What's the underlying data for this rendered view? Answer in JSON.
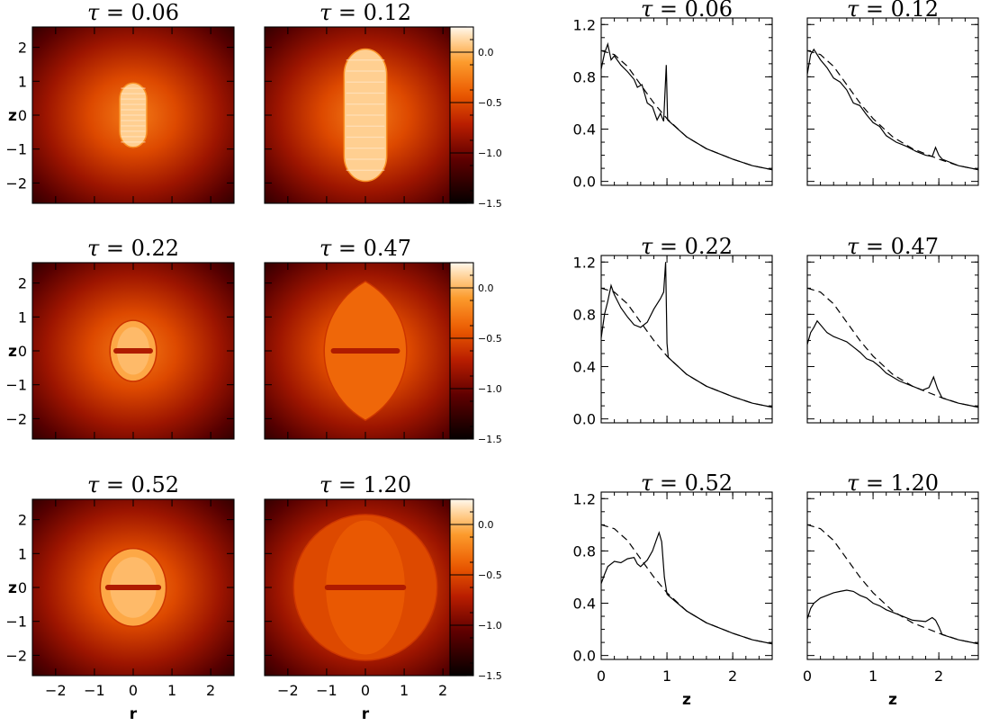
{
  "chart_data": {
    "type": "figure",
    "maps": {
      "type": "heatmap",
      "xlabel": "r",
      "ylabel": "z",
      "x_ticks": [
        -2,
        -1,
        0,
        1,
        2
      ],
      "y_ticks": [
        -2,
        -1,
        0,
        1,
        2
      ],
      "xlim": [
        -2.6,
        2.6
      ],
      "ylim": [
        -2.6,
        2.6
      ],
      "colorbar": {
        "ticks": [
          "0.0",
          "-0.5",
          "-1.0",
          "-1.5"
        ],
        "values": [
          0.0,
          -0.5,
          -1.0,
          -1.5
        ],
        "range": [
          -1.5,
          0.25
        ]
      },
      "panels": [
        {
          "title": "τ = 0.06",
          "tau_label": "τ",
          "value_label": "= 0.06",
          "shock_r": 0.35,
          "shock_z": 0.95,
          "shape": "pill",
          "disk": false
        },
        {
          "title": "τ = 0.12",
          "tau_label": "τ",
          "value_label": "= 0.12",
          "shock_r": 0.55,
          "shock_z": 1.95,
          "shape": "pill",
          "disk": false
        },
        {
          "title": "τ = 0.22",
          "tau_label": "τ",
          "value_label": "= 0.22",
          "shock_r": 0.6,
          "shock_z": 0.9,
          "shape": "ellipse",
          "disk": true
        },
        {
          "title": "τ = 0.47",
          "tau_label": "τ",
          "value_label": "= 0.47",
          "shock_r": 1.05,
          "shock_z": 2.05,
          "shape": "lens",
          "disk": true
        },
        {
          "title": "τ = 0.52",
          "tau_label": "τ",
          "value_label": "= 0.52",
          "shock_r": 0.85,
          "shock_z": 1.15,
          "shape": "ellipse",
          "disk": true
        },
        {
          "title": "τ = 1.20",
          "tau_label": "τ",
          "value_label": "= 1.20",
          "shock_r": 1.85,
          "shock_z": 2.15,
          "shape": "ellipse",
          "disk": true
        }
      ]
    },
    "profiles": {
      "type": "line",
      "xlabel": "z",
      "x_ticks": [
        0,
        1,
        2
      ],
      "y_ticks": [
        "0.0",
        "0.4",
        "0.8",
        "1.2"
      ],
      "y_tick_values": [
        0.0,
        0.4,
        0.8,
        1.2
      ],
      "xlim": [
        0,
        2.6
      ],
      "ylim": [
        -0.03,
        1.25
      ],
      "series": [
        {
          "line": "solid"
        },
        {
          "line": "dashed"
        }
      ],
      "panels": [
        {
          "title": "τ = 0.06",
          "tau_label": "τ",
          "value_label": "= 0.06",
          "solid": [
            [
              0.0,
              0.86
            ],
            [
              0.05,
              0.98
            ],
            [
              0.1,
              1.05
            ],
            [
              0.15,
              0.93
            ],
            [
              0.2,
              0.96
            ],
            [
              0.3,
              0.89
            ],
            [
              0.4,
              0.84
            ],
            [
              0.5,
              0.78
            ],
            [
              0.55,
              0.72
            ],
            [
              0.62,
              0.74
            ],
            [
              0.7,
              0.6
            ],
            [
              0.78,
              0.57
            ],
            [
              0.85,
              0.47
            ],
            [
              0.9,
              0.52
            ],
            [
              0.95,
              0.46
            ],
            [
              0.99,
              0.89
            ],
            [
              1.01,
              0.47
            ],
            [
              1.3,
              0.34
            ],
            [
              1.6,
              0.25
            ],
            [
              2.0,
              0.17
            ],
            [
              2.3,
              0.12
            ],
            [
              2.6,
              0.09
            ]
          ],
          "dashed": [
            [
              0.0,
              1.0
            ],
            [
              0.2,
              0.97
            ],
            [
              0.4,
              0.88
            ],
            [
              0.6,
              0.74
            ],
            [
              0.8,
              0.6
            ],
            [
              1.0,
              0.48
            ],
            [
              1.3,
              0.34
            ],
            [
              1.6,
              0.25
            ],
            [
              2.0,
              0.17
            ],
            [
              2.3,
              0.12
            ],
            [
              2.6,
              0.09
            ]
          ]
        },
        {
          "title": "τ = 0.12",
          "tau_label": "τ",
          "value_label": "= 0.12",
          "solid": [
            [
              0.0,
              0.82
            ],
            [
              0.05,
              0.97
            ],
            [
              0.1,
              1.01
            ],
            [
              0.2,
              0.93
            ],
            [
              0.3,
              0.87
            ],
            [
              0.4,
              0.79
            ],
            [
              0.5,
              0.76
            ],
            [
              0.6,
              0.7
            ],
            [
              0.7,
              0.6
            ],
            [
              0.8,
              0.58
            ],
            [
              0.9,
              0.51
            ],
            [
              1.0,
              0.45
            ],
            [
              1.1,
              0.42
            ],
            [
              1.2,
              0.35
            ],
            [
              1.35,
              0.3
            ],
            [
              1.5,
              0.27
            ],
            [
              1.65,
              0.23
            ],
            [
              1.8,
              0.2
            ],
            [
              1.9,
              0.19
            ],
            [
              1.95,
              0.26
            ],
            [
              2.0,
              0.2
            ],
            [
              2.05,
              0.17
            ],
            [
              2.3,
              0.12
            ],
            [
              2.6,
              0.09
            ]
          ],
          "dashed": [
            [
              0.0,
              1.0
            ],
            [
              0.2,
              0.97
            ],
            [
              0.4,
              0.88
            ],
            [
              0.6,
              0.74
            ],
            [
              0.8,
              0.6
            ],
            [
              1.0,
              0.48
            ],
            [
              1.3,
              0.34
            ],
            [
              1.6,
              0.25
            ],
            [
              2.0,
              0.17
            ],
            [
              2.3,
              0.12
            ],
            [
              2.6,
              0.09
            ]
          ]
        },
        {
          "title": "τ = 0.22",
          "tau_label": "τ",
          "value_label": "= 0.22",
          "solid": [
            [
              0.0,
              0.62
            ],
            [
              0.05,
              0.8
            ],
            [
              0.1,
              0.9
            ],
            [
              0.15,
              1.02
            ],
            [
              0.2,
              0.95
            ],
            [
              0.3,
              0.85
            ],
            [
              0.4,
              0.78
            ],
            [
              0.5,
              0.72
            ],
            [
              0.6,
              0.7
            ],
            [
              0.7,
              0.74
            ],
            [
              0.8,
              0.84
            ],
            [
              0.9,
              0.92
            ],
            [
              0.95,
              0.97
            ],
            [
              0.98,
              1.2
            ],
            [
              1.0,
              0.58
            ],
            [
              1.02,
              0.47
            ],
            [
              1.3,
              0.34
            ],
            [
              1.6,
              0.25
            ],
            [
              2.0,
              0.17
            ],
            [
              2.3,
              0.12
            ],
            [
              2.6,
              0.09
            ]
          ],
          "dashed": [
            [
              0.0,
              1.0
            ],
            [
              0.2,
              0.97
            ],
            [
              0.4,
              0.88
            ],
            [
              0.6,
              0.74
            ],
            [
              0.8,
              0.6
            ],
            [
              1.0,
              0.48
            ],
            [
              1.3,
              0.34
            ],
            [
              1.6,
              0.25
            ],
            [
              2.0,
              0.17
            ],
            [
              2.3,
              0.12
            ],
            [
              2.6,
              0.09
            ]
          ]
        },
        {
          "title": "τ = 0.47",
          "tau_label": "τ",
          "value_label": "= 0.47",
          "solid": [
            [
              0.0,
              0.57
            ],
            [
              0.05,
              0.66
            ],
            [
              0.1,
              0.7
            ],
            [
              0.15,
              0.75
            ],
            [
              0.2,
              0.72
            ],
            [
              0.3,
              0.66
            ],
            [
              0.4,
              0.63
            ],
            [
              0.5,
              0.61
            ],
            [
              0.6,
              0.59
            ],
            [
              0.7,
              0.55
            ],
            [
              0.8,
              0.51
            ],
            [
              0.9,
              0.46
            ],
            [
              1.0,
              0.44
            ],
            [
              1.1,
              0.4
            ],
            [
              1.2,
              0.35
            ],
            [
              1.4,
              0.29
            ],
            [
              1.6,
              0.25
            ],
            [
              1.75,
              0.22
            ],
            [
              1.85,
              0.24
            ],
            [
              1.92,
              0.32
            ],
            [
              1.98,
              0.23
            ],
            [
              2.05,
              0.16
            ],
            [
              2.3,
              0.12
            ],
            [
              2.6,
              0.09
            ]
          ],
          "dashed": [
            [
              0.0,
              1.0
            ],
            [
              0.2,
              0.97
            ],
            [
              0.4,
              0.88
            ],
            [
              0.6,
              0.74
            ],
            [
              0.8,
              0.6
            ],
            [
              1.0,
              0.48
            ],
            [
              1.3,
              0.34
            ],
            [
              1.6,
              0.25
            ],
            [
              2.0,
              0.17
            ],
            [
              2.3,
              0.12
            ],
            [
              2.6,
              0.09
            ]
          ]
        },
        {
          "title": "τ = 0.52",
          "tau_label": "τ",
          "value_label": "= 0.52",
          "solid": [
            [
              0.0,
              0.55
            ],
            [
              0.05,
              0.62
            ],
            [
              0.1,
              0.68
            ],
            [
              0.2,
              0.72
            ],
            [
              0.3,
              0.71
            ],
            [
              0.4,
              0.74
            ],
            [
              0.5,
              0.75
            ],
            [
              0.55,
              0.7
            ],
            [
              0.6,
              0.68
            ],
            [
              0.7,
              0.73
            ],
            [
              0.78,
              0.8
            ],
            [
              0.85,
              0.9
            ],
            [
              0.88,
              0.94
            ],
            [
              0.92,
              0.87
            ],
            [
              0.96,
              0.6
            ],
            [
              1.0,
              0.47
            ],
            [
              1.02,
              0.46
            ],
            [
              1.3,
              0.34
            ],
            [
              1.6,
              0.25
            ],
            [
              2.0,
              0.17
            ],
            [
              2.3,
              0.12
            ],
            [
              2.6,
              0.09
            ]
          ],
          "dashed": [
            [
              0.0,
              1.0
            ],
            [
              0.2,
              0.97
            ],
            [
              0.4,
              0.88
            ],
            [
              0.6,
              0.74
            ],
            [
              0.8,
              0.6
            ],
            [
              1.0,
              0.48
            ],
            [
              1.3,
              0.34
            ],
            [
              1.6,
              0.25
            ],
            [
              2.0,
              0.17
            ],
            [
              2.3,
              0.12
            ],
            [
              2.6,
              0.09
            ]
          ]
        },
        {
          "title": "τ = 1.20",
          "tau_label": "τ",
          "value_label": "= 1.20",
          "solid": [
            [
              0.0,
              0.28
            ],
            [
              0.05,
              0.36
            ],
            [
              0.1,
              0.4
            ],
            [
              0.2,
              0.44
            ],
            [
              0.3,
              0.46
            ],
            [
              0.4,
              0.48
            ],
            [
              0.5,
              0.49
            ],
            [
              0.6,
              0.5
            ],
            [
              0.7,
              0.49
            ],
            [
              0.8,
              0.46
            ],
            [
              0.9,
              0.44
            ],
            [
              1.0,
              0.4
            ],
            [
              1.1,
              0.38
            ],
            [
              1.2,
              0.35
            ],
            [
              1.4,
              0.31
            ],
            [
              1.6,
              0.27
            ],
            [
              1.8,
              0.26
            ],
            [
              1.9,
              0.29
            ],
            [
              1.95,
              0.27
            ],
            [
              2.0,
              0.22
            ],
            [
              2.05,
              0.16
            ],
            [
              2.3,
              0.12
            ],
            [
              2.6,
              0.09
            ]
          ],
          "dashed": [
            [
              0.0,
              1.0
            ],
            [
              0.2,
              0.97
            ],
            [
              0.4,
              0.88
            ],
            [
              0.6,
              0.74
            ],
            [
              0.8,
              0.6
            ],
            [
              1.0,
              0.48
            ],
            [
              1.3,
              0.34
            ],
            [
              1.6,
              0.25
            ],
            [
              2.0,
              0.17
            ],
            [
              2.3,
              0.12
            ],
            [
              2.6,
              0.09
            ]
          ]
        }
      ]
    }
  }
}
